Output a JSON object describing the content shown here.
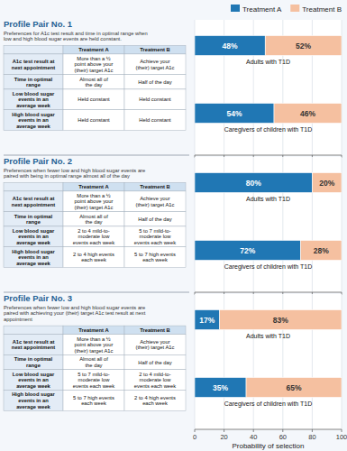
{
  "chart_data": [
    {
      "type": "bar",
      "orientation": "horizontal",
      "stacked": true,
      "data_labels": true,
      "grid": true,
      "tick_labels": false,
      "legend": "upper right",
      "title": "Profile Pair No. 1",
      "subtitle": "Preferences for A1c test result and time in optimal range when\nlow and high blood sugar events are held constant.",
      "categories": [
        "Adults with T1D",
        "Caregivers of children with T1D"
      ],
      "series": [
        {
          "name": "Treatment A",
          "color": "#2077b4",
          "values": [
            48,
            54
          ],
          "value_labels": [
            "48%",
            "54%"
          ]
        },
        {
          "name": "Treatment B",
          "color": "#f5c0a0",
          "values": [
            52,
            46
          ],
          "value_labels": [
            "52%",
            "46%"
          ]
        }
      ],
      "xlim": [
        0,
        100
      ],
      "xticks": [
        0,
        20,
        40,
        60,
        80,
        100
      ],
      "table": {
        "header": [
          "Treatment A",
          "Treatment B"
        ],
        "rows": [
          "A1c test result at\nnext appointment",
          "Time in optimal\nrange",
          "Low blood sugar\nevents in an\naverage week",
          "High blood sugar\nevents in an\naverage week"
        ],
        "A": [
          "More than a ½\npoint above your\n(their) target A1c",
          "Almost all of\nthe day",
          "Held constant",
          "Held constant"
        ],
        "B": [
          "Achieve your\n(their) target A1c",
          "Half of the day",
          "Held constant",
          "Held constant"
        ]
      }
    },
    {
      "type": "bar",
      "orientation": "horizontal",
      "stacked": true,
      "data_labels": true,
      "grid": true,
      "tick_labels": false,
      "title": "Profile Pair No. 2",
      "subtitle": "Preferences when fewer low and high blood sugar events are\npaired with being in optimal range almost all of the day",
      "categories": [
        "Adults with T1D",
        "Caregivers of children with T1D"
      ],
      "series": [
        {
          "name": "Treatment A",
          "color": "#2077b4",
          "values": [
            80,
            72
          ],
          "value_labels": [
            "80%",
            "72%"
          ]
        },
        {
          "name": "Treatment B",
          "color": "#f5c0a0",
          "values": [
            20,
            28
          ],
          "value_labels": [
            "20%",
            "28%"
          ]
        }
      ],
      "xlim": [
        0,
        100
      ],
      "xticks": [
        0,
        20,
        40,
        60,
        80,
        100
      ],
      "table": {
        "header": [
          "Treatment A",
          "Treatment B"
        ],
        "rows": [
          "A1c test result at\nnext appointment",
          "Time in optimal\nrange",
          "Low blood sugar\nevents in an\naverage week",
          "High blood sugar\nevents in an\naverage week"
        ],
        "A": [
          "More than a ½\npoint above your\n(their) target A1c",
          "Almost all of\nthe day",
          "2 to 4 mild-to-\nmoderate low\nevents each week",
          "2 to 4 high events\neach week"
        ],
        "B": [
          "Achieve your\n(their) target A1c",
          "Half of the day",
          "5 to 7 mild-to-\nmoderate low\nevents each week",
          "5 to 7 high events\neach week"
        ]
      }
    },
    {
      "type": "bar",
      "orientation": "horizontal",
      "stacked": true,
      "data_labels": true,
      "grid": true,
      "tick_labels": "x",
      "title": "Profile Pair No. 3",
      "subtitle": "Preferences when fewer low and high blood sugar events are\npaired with achieving your (their) target A1c test result at next\nappointment",
      "xlabel": "Probability of selection",
      "categories": [
        "Adults with T1D",
        "Caregivers of children with T1D"
      ],
      "series": [
        {
          "name": "Treatment A",
          "color": "#2077b4",
          "values": [
            17,
            35
          ],
          "value_labels": [
            "17%",
            "35%"
          ]
        },
        {
          "name": "Treatment B",
          "color": "#f5c0a0",
          "values": [
            83,
            65
          ],
          "value_labels": [
            "83%",
            "65%"
          ]
        }
      ],
      "xlim": [
        0,
        100
      ],
      "xticks": [
        0,
        20,
        40,
        60,
        80,
        100
      ],
      "table": {
        "header": [
          "Treatment A",
          "Treatment B"
        ],
        "rows": [
          "A1c test result at\nnext appointment",
          "Time in optimal\nrange",
          "Low blood sugar\nevents in an\naverage week",
          "High blood sugar\nevents in an\naverage week"
        ],
        "A": [
          "More than a ½\npoint above your\n(their) target A1c",
          "Almost all of\nthe day",
          "5 to 7 mild-to-\nmoderate low\nevents each week",
          "5 to 7 high events\neach week"
        ],
        "B": [
          "Achieve your\n(their) target A1c",
          "Half of the day",
          "2 to 4 mild-to-\nmoderate low\nevents each week",
          "2 to 4 high events\neach week"
        ]
      }
    }
  ]
}
